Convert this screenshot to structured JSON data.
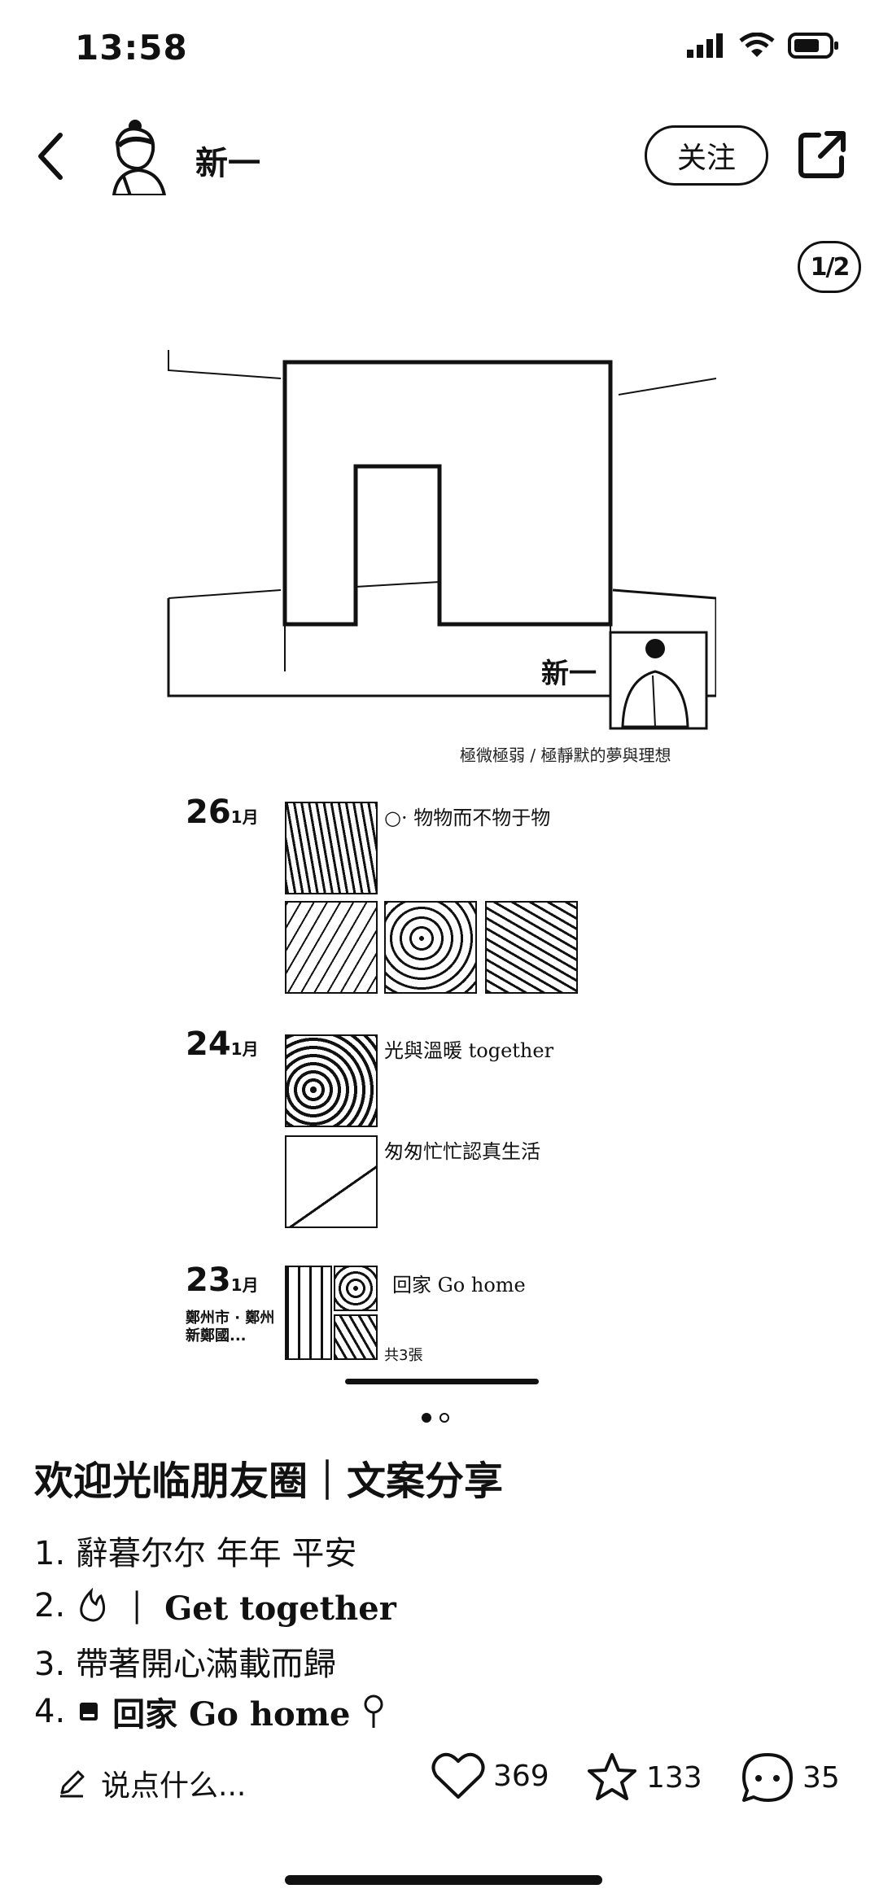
{
  "status_bar": {
    "time": "13:58"
  },
  "header": {
    "username": "新一",
    "follow_label": "关注"
  },
  "pager": {
    "label": "1/2"
  },
  "poster": {
    "signature": "新一",
    "caption": "極微極弱 / 極靜默的夢與理想",
    "entries": [
      {
        "day": "26",
        "month": "1月",
        "text": "○· 物物而不物于物"
      },
      {
        "day": "24",
        "month": "1月",
        "text": "光與溫暖 together",
        "text2": "匆匆忙忙認真生活"
      },
      {
        "day": "23",
        "month": "1月",
        "text": "回家 Go home",
        "location": "鄭州市 · 鄭州新鄭國...",
        "count": "共3張"
      }
    ]
  },
  "post": {
    "title": "欢迎光临朋友圈｜文案分享",
    "lines": [
      {
        "num": "1.",
        "text": "辭暮尔尔 年年 平安"
      },
      {
        "num": "2.",
        "text": "｜ Get together"
      },
      {
        "num": "3.",
        "text": "帶著開心滿載而歸"
      },
      {
        "num": "4.",
        "text": "回家 Go home"
      }
    ]
  },
  "bottom_bar": {
    "comment_placeholder": "说点什么...",
    "likes": "369",
    "favorites": "133",
    "comments": "35"
  }
}
